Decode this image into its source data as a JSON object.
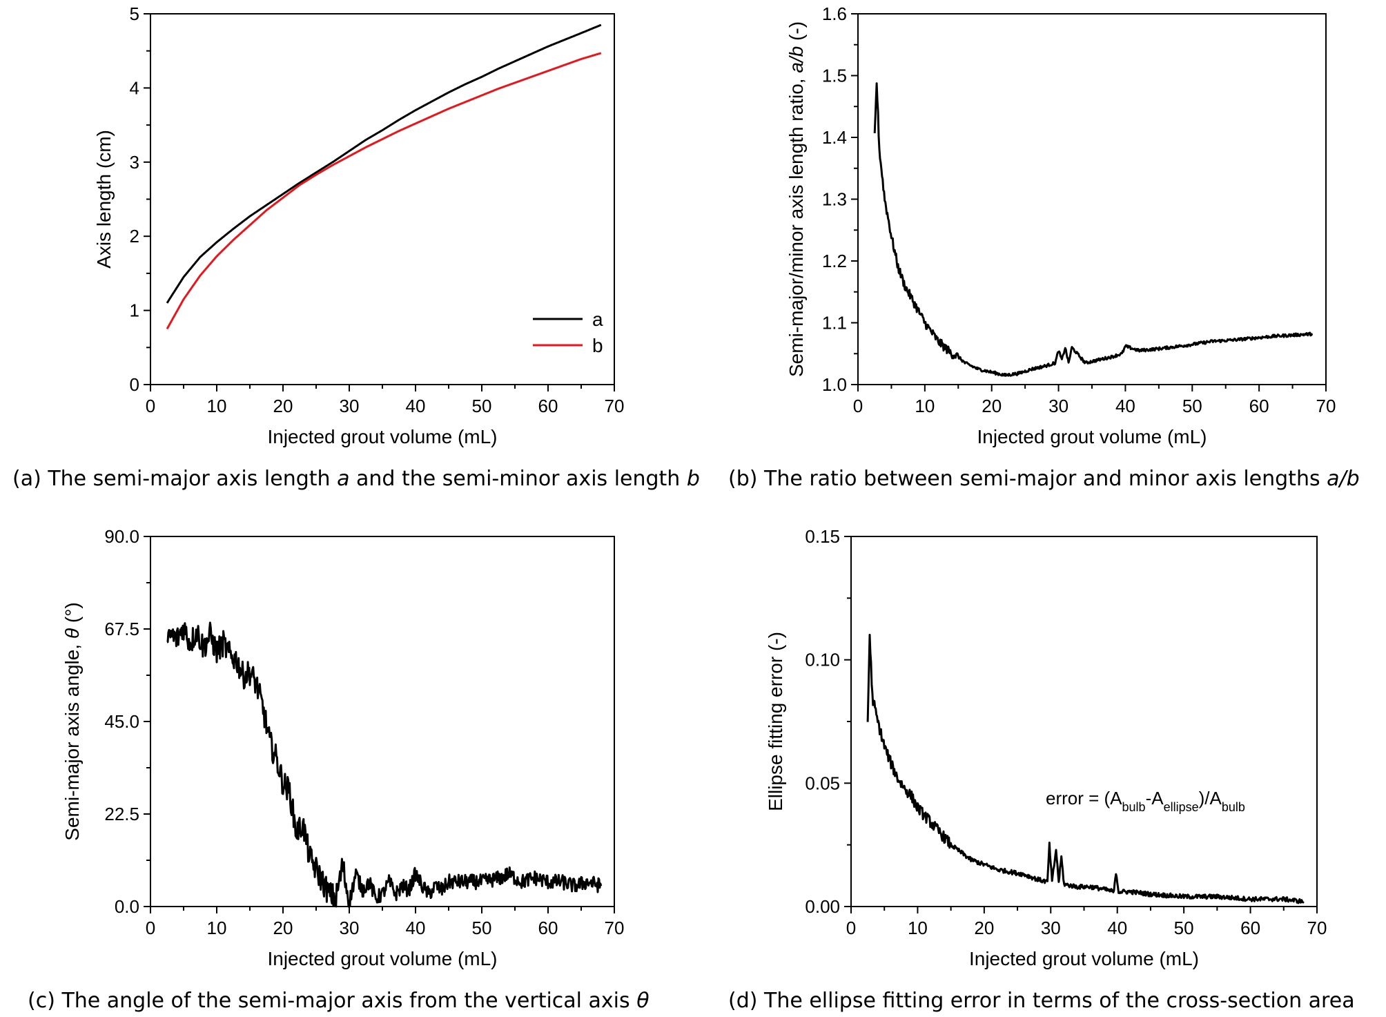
{
  "chart_data": [
    {
      "id": "a",
      "type": "line",
      "title": "",
      "xlabel": "Injected grout volume (mL)",
      "ylabel": "Axis length (cm)",
      "xlim": [
        0,
        70
      ],
      "ylim": [
        0,
        5
      ],
      "xticks": [
        0,
        10,
        20,
        30,
        40,
        50,
        60,
        70
      ],
      "yticks": [
        0,
        1,
        2,
        3,
        4,
        5
      ],
      "ytick_labels": [
        "0",
        "1",
        "2",
        "3",
        "4",
        "5"
      ],
      "legend": {
        "position": "bottom-right",
        "entries": [
          "a",
          "b"
        ]
      },
      "grid": false,
      "series": [
        {
          "name": "a",
          "color": "#000000",
          "x": [
            2.5,
            5,
            7.5,
            10,
            12.5,
            15,
            17.5,
            20,
            22.5,
            25,
            27.5,
            30,
            32.5,
            35,
            37.5,
            40,
            42.5,
            45,
            47.5,
            50,
            52.5,
            55,
            57.5,
            60,
            62.5,
            65,
            68
          ],
          "y": [
            1.1,
            1.45,
            1.72,
            1.92,
            2.1,
            2.27,
            2.42,
            2.57,
            2.72,
            2.86,
            3.0,
            3.15,
            3.3,
            3.43,
            3.57,
            3.7,
            3.82,
            3.94,
            4.05,
            4.15,
            4.26,
            4.36,
            4.46,
            4.56,
            4.65,
            4.74,
            4.85
          ]
        },
        {
          "name": "b",
          "color": "#e8161b",
          "x": [
            2.5,
            5,
            7.5,
            10,
            12.5,
            15,
            17.5,
            20,
            22.5,
            25,
            27.5,
            30,
            32.5,
            35,
            37.5,
            40,
            42.5,
            45,
            47.5,
            50,
            52.5,
            55,
            57.5,
            60,
            62.5,
            65,
            68
          ],
          "y": [
            0.75,
            1.15,
            1.47,
            1.73,
            1.95,
            2.15,
            2.35,
            2.52,
            2.69,
            2.83,
            2.96,
            3.08,
            3.2,
            3.31,
            3.42,
            3.52,
            3.62,
            3.72,
            3.81,
            3.9,
            3.99,
            4.07,
            4.15,
            4.23,
            4.31,
            4.39,
            4.47
          ]
        }
      ]
    },
    {
      "id": "b",
      "type": "line",
      "title": "",
      "xlabel": "Injected grout volume (mL)",
      "ylabel_prefix": "Semi-major/minor axis length ratio, ",
      "ylabel_symbol": "a/b",
      "ylabel_suffix": " (-)",
      "xlim": [
        0,
        70
      ],
      "ylim": [
        1.0,
        1.6
      ],
      "xticks": [
        0,
        10,
        20,
        30,
        40,
        50,
        60,
        70
      ],
      "yticks": [
        1.0,
        1.1,
        1.2,
        1.3,
        1.4,
        1.5,
        1.6
      ],
      "ytick_labels": [
        "1.0",
        "1.1",
        "1.2",
        "1.3",
        "1.4",
        "1.5",
        "1.6"
      ],
      "grid": false,
      "series": [
        {
          "color": "#000000",
          "x": [
            2.5,
            2.8,
            3.2,
            4,
            5,
            6,
            7,
            8,
            9,
            10,
            11,
            12,
            13,
            14,
            15,
            16,
            17,
            18,
            20,
            22,
            24,
            26,
            28,
            29.5,
            30,
            30.5,
            31,
            31.5,
            32,
            34,
            36,
            38,
            39.5,
            40,
            42,
            45,
            48,
            50,
            53,
            56,
            59,
            62,
            65,
            68
          ],
          "y": [
            1.4,
            1.49,
            1.38,
            1.3,
            1.24,
            1.19,
            1.16,
            1.14,
            1.12,
            1.1,
            1.085,
            1.07,
            1.06,
            1.05,
            1.045,
            1.035,
            1.03,
            1.025,
            1.02,
            1.015,
            1.018,
            1.025,
            1.03,
            1.035,
            1.055,
            1.04,
            1.06,
            1.035,
            1.06,
            1.035,
            1.04,
            1.045,
            1.05,
            1.062,
            1.055,
            1.058,
            1.062,
            1.065,
            1.07,
            1.072,
            1.075,
            1.078,
            1.08,
            1.082
          ]
        }
      ]
    },
    {
      "id": "c",
      "type": "line",
      "title": "",
      "xlabel": "Injected grout volume (mL)",
      "ylabel_prefix": "Semi-major axis angle, ",
      "ylabel_symbol": "θ",
      "ylabel_suffix": " (°)",
      "xlim": [
        0,
        70
      ],
      "ylim": [
        0,
        90
      ],
      "xticks": [
        0,
        10,
        20,
        30,
        40,
        50,
        60,
        70
      ],
      "yticks": [
        0,
        22.5,
        45,
        67.5,
        90
      ],
      "ytick_labels": [
        "0.0",
        "22.5",
        "45.0",
        "67.5",
        "90.0"
      ],
      "grid": false,
      "series": [
        {
          "color": "#000000",
          "x": [
            2.5,
            3,
            4,
            5,
            6,
            7,
            8,
            9,
            10,
            11,
            12,
            13,
            14,
            15,
            16,
            17,
            18,
            19,
            20,
            21,
            22,
            23,
            24,
            25,
            26,
            27,
            28,
            29,
            30,
            31,
            32,
            33,
            34,
            35,
            36,
            37,
            38,
            39,
            40,
            41,
            42,
            43,
            44,
            45,
            47,
            50,
            53,
            54,
            56,
            58,
            60,
            62,
            64,
            66,
            68
          ],
          "y": [
            63,
            66,
            65,
            68,
            64,
            67,
            63,
            66,
            62,
            64,
            61,
            60,
            56,
            57,
            54,
            48,
            40,
            36,
            30,
            28,
            18,
            20,
            12,
            9,
            6,
            3,
            2,
            10,
            1,
            8,
            4,
            6,
            2,
            3,
            6,
            3,
            5,
            4,
            8,
            5,
            3,
            5,
            4,
            6,
            6,
            6,
            7,
            8,
            6,
            7,
            6,
            6,
            5,
            6,
            5
          ]
        }
      ]
    },
    {
      "id": "d",
      "type": "line",
      "title": "",
      "xlabel": "Injected grout volume (mL)",
      "ylabel": "Ellipse fitting error (-)",
      "xlim": [
        0,
        70
      ],
      "ylim": [
        0,
        0.15
      ],
      "xticks": [
        0,
        10,
        20,
        30,
        40,
        50,
        60,
        70
      ],
      "yticks": [
        0,
        0.05,
        0.1,
        0.15
      ],
      "ytick_labels": [
        "0.00",
        "0.05",
        "0.10",
        "0.15"
      ],
      "grid": false,
      "annotation": {
        "lhs": "error = (A",
        "sub1": "bulb",
        "mid1": "-A",
        "sub2": "ellipse",
        "mid2": ")/A",
        "sub3": "bulb"
      },
      "series": [
        {
          "color": "#000000",
          "x": [
            2.5,
            2.8,
            3.2,
            4,
            5,
            6,
            7,
            8,
            9,
            10,
            11,
            12,
            13,
            14,
            15,
            16,
            18,
            20,
            22,
            24,
            26,
            28,
            29.5,
            29.8,
            30.2,
            30.8,
            31.2,
            31.6,
            32,
            34,
            36,
            38,
            39.5,
            39.8,
            40.2,
            42,
            45,
            50,
            55,
            60,
            65,
            68
          ],
          "y": [
            0.075,
            0.11,
            0.085,
            0.075,
            0.065,
            0.058,
            0.052,
            0.048,
            0.045,
            0.04,
            0.037,
            0.034,
            0.031,
            0.028,
            0.025,
            0.023,
            0.019,
            0.017,
            0.015,
            0.014,
            0.013,
            0.011,
            0.01,
            0.025,
            0.01,
            0.023,
            0.01,
            0.02,
            0.009,
            0.008,
            0.008,
            0.007,
            0.006,
            0.014,
            0.006,
            0.006,
            0.005,
            0.004,
            0.004,
            0.003,
            0.003,
            0.002
          ]
        }
      ]
    }
  ],
  "captions": {
    "a": {
      "pre": "(a) The semi-major axis length ",
      "sym1": "a",
      "mid": " and the semi-minor axis length ",
      "sym2": "b"
    },
    "b": {
      "pre": "(b) The ratio between semi-major and minor axis lengths ",
      "sym1": "a/b"
    },
    "c": {
      "pre": "(c) The angle of the semi-major axis from the vertical axis ",
      "sym1": "θ"
    },
    "d": {
      "pre": "(d) The ellipse fitting error in terms of the cross-section area"
    }
  }
}
